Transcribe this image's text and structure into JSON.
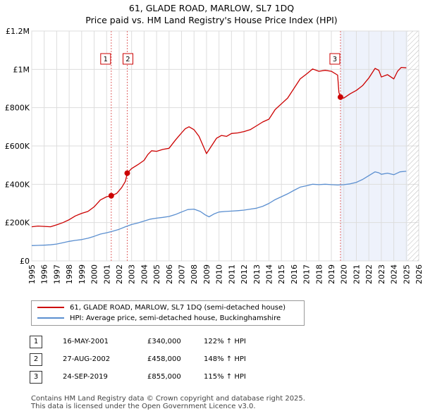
{
  "chart_data": {
    "type": "line",
    "title": "61, GLADE ROAD, MARLOW, SL7 1DQ",
    "subtitle": "Price paid vs. HM Land Registry's House Price Index (HPI)",
    "xlabel": "",
    "ylabel": "",
    "xlim": [
      1995,
      2026
    ],
    "ylim": [
      0,
      1200000
    ],
    "x_ticks": [
      "1995",
      "1996",
      "1997",
      "1998",
      "1999",
      "2000",
      "2001",
      "2002",
      "2003",
      "2004",
      "2005",
      "2006",
      "2007",
      "2008",
      "2009",
      "2010",
      "2011",
      "2012",
      "2013",
      "2014",
      "2015",
      "2016",
      "2017",
      "2018",
      "2019",
      "2020",
      "2021",
      "2022",
      "2023",
      "2024",
      "2025",
      "2026"
    ],
    "y_ticks": [
      {
        "value": 0,
        "label": "£0"
      },
      {
        "value": 200000,
        "label": "£200K"
      },
      {
        "value": 400000,
        "label": "£400K"
      },
      {
        "value": 600000,
        "label": "£600K"
      },
      {
        "value": 800000,
        "label": "£800K"
      },
      {
        "value": 1000000,
        "label": "£1M"
      },
      {
        "value": 1200000,
        "label": "£1.2M"
      }
    ],
    "grid": true,
    "series": [
      {
        "name": "61, GLADE ROAD, MARLOW, SL7 1DQ (semi-detached house)",
        "color": "#cc0000",
        "points": [
          [
            1995.0,
            178000
          ],
          [
            1995.5,
            182000
          ],
          [
            1996.0,
            180000
          ],
          [
            1996.5,
            178000
          ],
          [
            1997.0,
            188000
          ],
          [
            1997.5,
            200000
          ],
          [
            1998.0,
            215000
          ],
          [
            1998.5,
            235000
          ],
          [
            1999.0,
            248000
          ],
          [
            1999.5,
            258000
          ],
          [
            2000.0,
            282000
          ],
          [
            2000.5,
            318000
          ],
          [
            2001.0,
            335000
          ],
          [
            2001.37,
            340000
          ],
          [
            2001.8,
            352000
          ],
          [
            2002.2,
            382000
          ],
          [
            2002.5,
            415000
          ],
          [
            2002.65,
            458000
          ],
          [
            2003.0,
            482000
          ],
          [
            2003.5,
            502000
          ],
          [
            2004.0,
            525000
          ],
          [
            2004.3,
            555000
          ],
          [
            2004.6,
            575000
          ],
          [
            2005.0,
            572000
          ],
          [
            2005.5,
            582000
          ],
          [
            2006.0,
            588000
          ],
          [
            2006.5,
            630000
          ],
          [
            2007.0,
            668000
          ],
          [
            2007.3,
            690000
          ],
          [
            2007.6,
            700000
          ],
          [
            2008.0,
            685000
          ],
          [
            2008.4,
            650000
          ],
          [
            2008.8,
            590000
          ],
          [
            2009.0,
            560000
          ],
          [
            2009.4,
            600000
          ],
          [
            2009.8,
            640000
          ],
          [
            2010.2,
            655000
          ],
          [
            2010.6,
            650000
          ],
          [
            2011.0,
            665000
          ],
          [
            2011.5,
            668000
          ],
          [
            2012.0,
            675000
          ],
          [
            2012.5,
            685000
          ],
          [
            2013.0,
            705000
          ],
          [
            2013.5,
            725000
          ],
          [
            2014.0,
            740000
          ],
          [
            2014.5,
            790000
          ],
          [
            2015.0,
            820000
          ],
          [
            2015.5,
            850000
          ],
          [
            2016.0,
            900000
          ],
          [
            2016.5,
            950000
          ],
          [
            2017.0,
            975000
          ],
          [
            2017.5,
            1002000
          ],
          [
            2018.0,
            990000
          ],
          [
            2018.5,
            995000
          ],
          [
            2019.0,
            990000
          ],
          [
            2019.5,
            970000
          ],
          [
            2019.6,
            880000
          ],
          [
            2019.73,
            855000
          ],
          [
            2020.0,
            850000
          ],
          [
            2020.5,
            872000
          ],
          [
            2021.0,
            890000
          ],
          [
            2021.5,
            915000
          ],
          [
            2022.0,
            955000
          ],
          [
            2022.5,
            1005000
          ],
          [
            2022.8,
            995000
          ],
          [
            2023.0,
            960000
          ],
          [
            2023.5,
            972000
          ],
          [
            2024.0,
            950000
          ],
          [
            2024.3,
            990000
          ],
          [
            2024.6,
            1010000
          ],
          [
            2025.0,
            1008000
          ]
        ]
      },
      {
        "name": "HPI: Average price, semi-detached house, Buckinghamshire",
        "color": "#5b8fd0",
        "points": [
          [
            1995.0,
            80000
          ],
          [
            1995.5,
            81000
          ],
          [
            1996.0,
            82000
          ],
          [
            1996.5,
            84000
          ],
          [
            1997.0,
            88000
          ],
          [
            1997.5,
            95000
          ],
          [
            1998.0,
            102000
          ],
          [
            1998.5,
            107000
          ],
          [
            1999.0,
            111000
          ],
          [
            1999.5,
            118000
          ],
          [
            2000.0,
            128000
          ],
          [
            2000.5,
            140000
          ],
          [
            2001.0,
            147000
          ],
          [
            2001.5,
            155000
          ],
          [
            2002.0,
            165000
          ],
          [
            2002.5,
            178000
          ],
          [
            2003.0,
            190000
          ],
          [
            2003.5,
            198000
          ],
          [
            2004.0,
            208000
          ],
          [
            2004.5,
            218000
          ],
          [
            2005.0,
            223000
          ],
          [
            2005.5,
            227000
          ],
          [
            2006.0,
            232000
          ],
          [
            2006.5,
            242000
          ],
          [
            2007.0,
            255000
          ],
          [
            2007.5,
            268000
          ],
          [
            2008.0,
            270000
          ],
          [
            2008.5,
            258000
          ],
          [
            2008.9,
            240000
          ],
          [
            2009.2,
            230000
          ],
          [
            2009.6,
            245000
          ],
          [
            2010.0,
            255000
          ],
          [
            2010.5,
            258000
          ],
          [
            2011.0,
            260000
          ],
          [
            2011.5,
            262000
          ],
          [
            2012.0,
            265000
          ],
          [
            2012.5,
            270000
          ],
          [
            2013.0,
            275000
          ],
          [
            2013.5,
            285000
          ],
          [
            2014.0,
            300000
          ],
          [
            2014.5,
            320000
          ],
          [
            2015.0,
            335000
          ],
          [
            2015.5,
            350000
          ],
          [
            2016.0,
            368000
          ],
          [
            2016.5,
            385000
          ],
          [
            2017.0,
            392000
          ],
          [
            2017.5,
            400000
          ],
          [
            2018.0,
            398000
          ],
          [
            2018.5,
            400000
          ],
          [
            2019.0,
            398000
          ],
          [
            2019.5,
            396000
          ],
          [
            2020.0,
            398000
          ],
          [
            2020.5,
            402000
          ],
          [
            2021.0,
            410000
          ],
          [
            2021.5,
            425000
          ],
          [
            2022.0,
            445000
          ],
          [
            2022.5,
            465000
          ],
          [
            2022.8,
            460000
          ],
          [
            2023.0,
            452000
          ],
          [
            2023.5,
            458000
          ],
          [
            2024.0,
            450000
          ],
          [
            2024.5,
            465000
          ],
          [
            2025.0,
            468000
          ]
        ]
      }
    ],
    "sales": [
      {
        "id": "1",
        "date": "16-MAY-2001",
        "price": "£340,000",
        "hpi": "122% ↑ HPI",
        "x": 2001.37,
        "value": 340000
      },
      {
        "id": "2",
        "date": "27-AUG-2002",
        "price": "£458,000",
        "hpi": "148% ↑ HPI",
        "x": 2002.65,
        "value": 458000
      },
      {
        "id": "3",
        "date": "24-SEP-2019",
        "price": "£855,000",
        "hpi": "115% ↑ HPI",
        "x": 2019.73,
        "value": 855000
      }
    ],
    "forecast_start": 2025.1,
    "legend_position": "below"
  },
  "footer": {
    "line1": "Contains HM Land Registry data © Crown copyright and database right 2025.",
    "line2": "This data is licensed under the Open Government Licence v3.0."
  }
}
